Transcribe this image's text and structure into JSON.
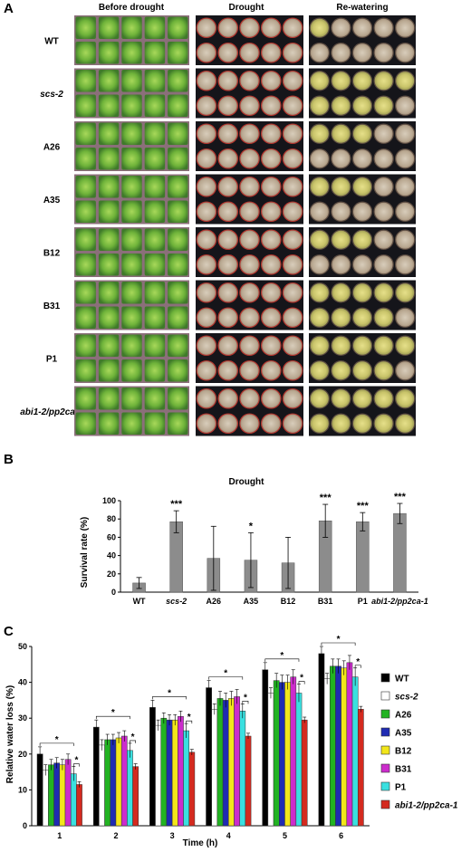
{
  "panels": {
    "A": {
      "label": "A",
      "column_headers": [
        "Before drought",
        "Drought",
        "Re-watering"
      ],
      "rows": [
        {
          "label": "WT",
          "italic": false
        },
        {
          "label": "scs-2",
          "italic": true
        },
        {
          "label": "A26",
          "italic": false
        },
        {
          "label": "A35",
          "italic": false
        },
        {
          "label": "B12",
          "italic": false
        },
        {
          "label": "B31",
          "italic": false
        },
        {
          "label": "P1",
          "italic": false
        },
        {
          "label": "abi1-2/pp2ca-1",
          "italic": true
        }
      ],
      "rewater_recovery": [
        0.05,
        0.85,
        0.3,
        0.3,
        0.3,
        0.85,
        0.85,
        0.95
      ]
    },
    "B": {
      "label": "B"
    },
    "C": {
      "label": "C"
    }
  },
  "chart_data": [
    {
      "type": "bar",
      "title": "Drought",
      "ylabel": "Survival rate (%)",
      "xlabel": "",
      "categories": [
        "WT",
        "scs-2",
        "A26",
        "A35",
        "B12",
        "B31",
        "P1",
        "abi1-2/pp2ca-1"
      ],
      "italic_categories": [
        "scs-2",
        "abi1-2/pp2ca-1"
      ],
      "values": [
        10,
        77,
        37,
        35,
        32,
        78,
        77,
        86
      ],
      "errors": [
        6,
        12,
        35,
        30,
        28,
        18,
        10,
        11
      ],
      "significance": [
        "",
        "***",
        "",
        "*",
        "",
        "***",
        "***",
        "***"
      ],
      "ylim": [
        0,
        100
      ],
      "yticks": [
        0,
        20,
        40,
        60,
        80,
        100
      ],
      "bar_color": "#8c8c8c",
      "grid": false
    },
    {
      "type": "bar",
      "title": "",
      "ylabel": "Relative water loss (%)",
      "xlabel": "Time (h)",
      "categories": [
        "1",
        "2",
        "3",
        "4",
        "5",
        "6"
      ],
      "ylim": [
        0,
        50
      ],
      "yticks": [
        0,
        10,
        20,
        30,
        40,
        50
      ],
      "grid": false,
      "legend": "right",
      "significance_marker": "*",
      "series": [
        {
          "name": "WT",
          "color": "#000000",
          "values": [
            20,
            27.5,
            33,
            38.5,
            43.5,
            48
          ],
          "errors": [
            2,
            2,
            2,
            2,
            2,
            2
          ]
        },
        {
          "name": "scs-2",
          "italic": true,
          "color": "#ffffff",
          "values": [
            15.5,
            22.5,
            28,
            32.5,
            37,
            41
          ],
          "errors": [
            1.5,
            1.5,
            1.5,
            1.5,
            1.5,
            1.5
          ]
        },
        {
          "name": "A26",
          "color": "#22b322",
          "values": [
            17,
            24,
            30,
            35.5,
            40.5,
            44.5
          ],
          "errors": [
            1.5,
            1.5,
            1.5,
            2,
            2,
            2
          ]
        },
        {
          "name": "A35",
          "color": "#1f2bb3",
          "values": [
            17.5,
            24,
            29.5,
            35,
            40,
            44.5
          ],
          "errors": [
            1.5,
            1.5,
            1.5,
            2,
            2,
            2
          ]
        },
        {
          "name": "B12",
          "color": "#f2e61a",
          "values": [
            17,
            24.5,
            29.5,
            35.5,
            40,
            44
          ],
          "errors": [
            1.5,
            1.5,
            1.5,
            2,
            2,
            2
          ]
        },
        {
          "name": "B31",
          "color": "#cc2ccc",
          "values": [
            18.5,
            25,
            30.5,
            36,
            41.5,
            45.5
          ],
          "errors": [
            1.5,
            1.5,
            1.5,
            2,
            2,
            2
          ]
        },
        {
          "name": "P1",
          "color": "#3ae0e0",
          "values": [
            14.5,
            21,
            26.5,
            32,
            37,
            41.5
          ],
          "errors": [
            2,
            2,
            2,
            2,
            2.5,
            2.5
          ]
        },
        {
          "name": "abi1-2/pp2ca-1",
          "italic": true,
          "color": "#d42a1f",
          "values": [
            11.5,
            16.5,
            20.5,
            25,
            29.5,
            32.5
          ],
          "errors": [
            0.8,
            0.8,
            0.8,
            0.8,
            0.8,
            0.8
          ]
        }
      ]
    }
  ]
}
